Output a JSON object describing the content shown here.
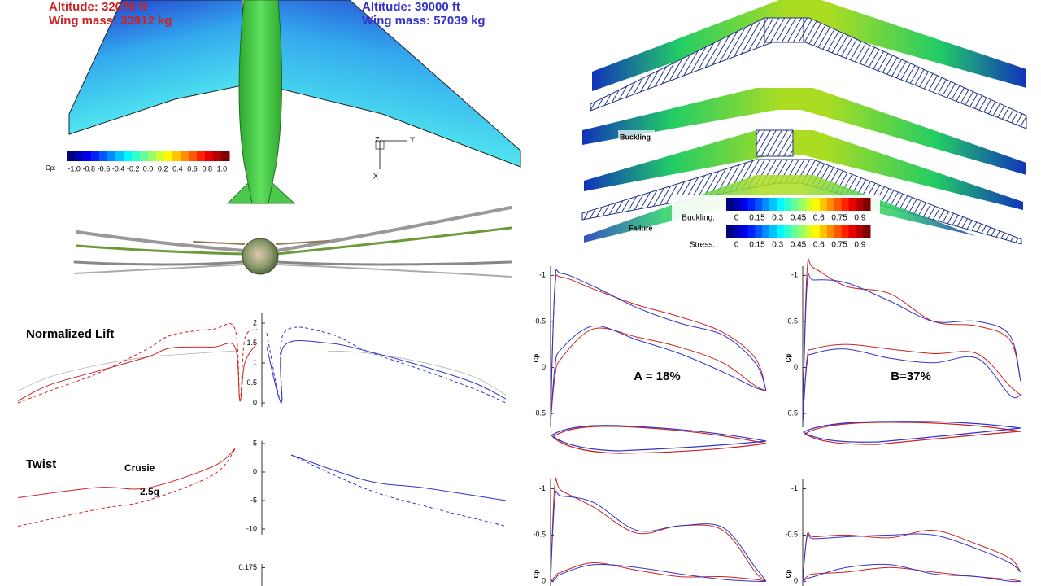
{
  "header": {
    "left_altitude": "Altitude: 32070 ft",
    "left_mass": "Wing mass: 33912 kg",
    "right_altitude": "Altitude: 39000 ft",
    "right_mass": "Wing mass: 57039 kg"
  },
  "cp_colorbar": {
    "label": "Cp:",
    "ticks": [
      "-1.0",
      "-0.8",
      "-0.6",
      "-0.4",
      "-0.2",
      "0.0",
      "0.2",
      "0.4",
      "0.6",
      "0.8",
      "1.0"
    ]
  },
  "axes_triad": {
    "z": "Z",
    "y": "Y",
    "x": "X"
  },
  "structure": {
    "buckling_label": "Buckling",
    "failure_label": "Failure",
    "buckling_bar": {
      "label": "Buckling:",
      "ticks": [
        "0",
        "0.15",
        "0.3",
        "0.45",
        "0.6",
        "0.75",
        "0.9"
      ]
    },
    "stress_bar": {
      "label": "Stress:",
      "ticks": [
        "0",
        "0.15",
        "0.3",
        "0.45",
        "0.6",
        "0.75",
        "0.9"
      ]
    }
  },
  "chart_data": [
    {
      "type": "line",
      "title": "Normalized Lift",
      "x": [
        -1,
        -0.87,
        -0.67,
        -0.47,
        -0.37,
        -0.2,
        -0.11,
        -0.09,
        -0.07,
        -0.02,
        0.02,
        0.08,
        0.09,
        0.27,
        0.43,
        0.67,
        0.87,
        1
      ],
      "xlim": [
        -1,
        1
      ],
      "ylim": [
        -0.1,
        2.25
      ],
      "yticks": [
        0,
        0.5,
        1,
        1.5,
        2
      ],
      "series": [
        {
          "color": "#aaaaaa",
          "linestyle": "solid",
          "values": [
            0.3,
            0.65,
            0.95,
            1.15,
            1.2,
            1.27,
            1.3,
            null,
            null,
            null,
            null,
            null,
            null,
            1.3,
            1.25,
            1.0,
            0.65,
            0.2
          ]
        },
        {
          "color": "#cc2222",
          "linestyle": "solid",
          "values": [
            0.05,
            0.45,
            0.8,
            1.15,
            1.38,
            1.4,
            1.4,
            0.05,
            1.0,
            1.5,
            null,
            null,
            null,
            null,
            null,
            null,
            null,
            null
          ]
        },
        {
          "color": "#cc2222",
          "linestyle": "dashed",
          "values": [
            0.0,
            0.3,
            0.75,
            1.35,
            1.7,
            1.85,
            1.85,
            0.05,
            1.6,
            1.85,
            null,
            null,
            null,
            null,
            null,
            null,
            null,
            null
          ]
        },
        {
          "color": "#3333cc",
          "linestyle": "solid",
          "values": [
            null,
            null,
            null,
            null,
            null,
            null,
            null,
            null,
            null,
            null,
            1.4,
            0.0,
            1.42,
            1.5,
            1.3,
            0.9,
            0.5,
            0.1
          ]
        },
        {
          "color": "#3333cc",
          "linestyle": "dashed",
          "values": [
            null,
            null,
            null,
            null,
            null,
            null,
            null,
            null,
            null,
            null,
            1.75,
            0.0,
            1.75,
            1.75,
            1.3,
            0.8,
            0.35,
            0.0
          ]
        }
      ]
    },
    {
      "type": "line",
      "title": "Twist",
      "annotations": [
        "Crusie",
        "2.5g"
      ],
      "x": [
        -1,
        -0.67,
        -0.47,
        -0.2,
        -0.11,
        0.12,
        0.43,
        0.67,
        1
      ],
      "xlim": [
        -1,
        1
      ],
      "ylim": [
        -11,
        5.5
      ],
      "yticks": [
        5,
        0,
        -5,
        -10
      ],
      "series": [
        {
          "color": "#cc2222",
          "linestyle": "solid",
          "values": [
            -4.5,
            -2.7,
            -2.8,
            1,
            4.1,
            null,
            null,
            null,
            null
          ]
        },
        {
          "color": "#cc2222",
          "linestyle": "dashed",
          "values": [
            -9.5,
            -6.5,
            -5,
            -0.5,
            4,
            null,
            null,
            null,
            null
          ]
        },
        {
          "color": "#3333cc",
          "linestyle": "solid",
          "values": [
            null,
            null,
            null,
            null,
            null,
            3,
            -1.5,
            -2.8,
            -5
          ]
        },
        {
          "color": "#3333cc",
          "linestyle": "dashed",
          "values": [
            null,
            null,
            null,
            null,
            null,
            3,
            -3,
            -6,
            -9.5
          ]
        }
      ]
    },
    {
      "type": "line",
      "ylim": [
        0.17,
        0.176
      ],
      "yticks": [
        0.175
      ]
    },
    {
      "type": "line",
      "title": "A = 18%",
      "ylabel": "Cp",
      "x": [
        0,
        0.02,
        0.05,
        0.2,
        0.4,
        0.6,
        0.8,
        0.95,
        1
      ],
      "xlim": [
        0,
        1
      ],
      "ylim": [
        0.65,
        -1.1
      ],
      "yticks": [
        -1,
        -0.5,
        0,
        0.5
      ],
      "series": [
        {
          "color": "#cc2222",
          "linestyle": "solid",
          "values": [
            0.45,
            -0.85,
            -0.98,
            -0.85,
            -0.68,
            -0.55,
            -0.38,
            -0.1,
            0.25
          ]
        },
        {
          "color": "#3333cc",
          "linestyle": "solid",
          "values": [
            0.6,
            -0.9,
            -1.02,
            -0.88,
            -0.65,
            -0.48,
            -0.35,
            -0.05,
            0.25
          ]
        },
        {
          "color": "#cc2222",
          "linestyle": "solid",
          "values": [
            0.6,
            0.1,
            -0.1,
            -0.42,
            -0.33,
            -0.22,
            -0.05,
            0.2,
            0.25
          ]
        },
        {
          "color": "#3333cc",
          "linestyle": "solid",
          "values": [
            0.6,
            0.0,
            -0.2,
            -0.45,
            -0.3,
            -0.15,
            0.05,
            0.22,
            0.25
          ]
        }
      ]
    },
    {
      "type": "line",
      "title": "B=37%",
      "ylabel": "Cp",
      "x": [
        0,
        0.02,
        0.05,
        0.2,
        0.4,
        0.6,
        0.8,
        0.95,
        1
      ],
      "xlim": [
        0,
        1
      ],
      "ylim": [
        0.65,
        -1.1
      ],
      "yticks": [
        -1,
        -0.5,
        0,
        0.5
      ],
      "series": [
        {
          "color": "#cc2222",
          "linestyle": "solid",
          "values": [
            0.5,
            -1.05,
            -1.08,
            -0.88,
            -0.8,
            -0.5,
            -0.45,
            -0.3,
            0.15
          ]
        },
        {
          "color": "#3333cc",
          "linestyle": "solid",
          "values": [
            0.5,
            -0.9,
            -0.95,
            -0.92,
            -0.72,
            -0.5,
            -0.5,
            -0.35,
            0.15
          ]
        },
        {
          "color": "#cc2222",
          "linestyle": "solid",
          "values": [
            0.6,
            -0.1,
            -0.2,
            -0.25,
            -0.2,
            -0.15,
            -0.15,
            0.2,
            0.3
          ]
        },
        {
          "color": "#3333cc",
          "linestyle": "solid",
          "values": [
            0.6,
            -0.05,
            -0.15,
            -0.2,
            -0.1,
            -0.05,
            -0.1,
            0.3,
            0.3
          ]
        }
      ]
    },
    {
      "type": "line",
      "ylabel": "Cp",
      "x": [
        0,
        0.02,
        0.05,
        0.2,
        0.4,
        0.6,
        0.8,
        0.95,
        1
      ],
      "xlim": [
        0,
        1
      ],
      "ylim": [
        0.05,
        -1.1
      ],
      "yticks": [
        -1,
        -0.5,
        0
      ],
      "series": [
        {
          "color": "#cc2222",
          "linestyle": "solid",
          "values": [
            0.0,
            -1.05,
            -0.98,
            -0.8,
            -0.52,
            -0.6,
            -0.55,
            -0.1,
            0.0
          ]
        },
        {
          "color": "#3333cc",
          "linestyle": "solid",
          "values": [
            0.0,
            -0.9,
            -0.92,
            -0.85,
            -0.55,
            -0.6,
            -0.58,
            -0.15,
            0.0
          ]
        },
        {
          "color": "#cc2222",
          "linestyle": "solid",
          "values": [
            0.0,
            -0.05,
            -0.1,
            -0.2,
            -0.12,
            -0.05,
            -0.05,
            -0.02,
            0.0
          ]
        },
        {
          "color": "#3333cc",
          "linestyle": "solid",
          "values": [
            0.0,
            -0.02,
            -0.08,
            -0.18,
            -0.15,
            -0.08,
            -0.02,
            0.0,
            0.0
          ]
        }
      ]
    },
    {
      "type": "line",
      "ylabel": "Cp",
      "x": [
        0,
        0.02,
        0.05,
        0.2,
        0.4,
        0.6,
        0.8,
        0.95,
        1
      ],
      "xlim": [
        0,
        1
      ],
      "ylim": [
        0.05,
        -1.1
      ],
      "yticks": [
        -1,
        -0.5,
        0
      ],
      "series": [
        {
          "color": "#cc2222",
          "linestyle": "solid",
          "values": [
            0.0,
            -0.5,
            -0.48,
            -0.5,
            -0.47,
            -0.55,
            -0.4,
            -0.25,
            -0.1
          ]
        },
        {
          "color": "#3333cc",
          "linestyle": "solid",
          "values": [
            0.0,
            -0.48,
            -0.46,
            -0.48,
            -0.5,
            -0.5,
            -0.35,
            -0.2,
            -0.1
          ]
        },
        {
          "color": "#cc2222",
          "linestyle": "solid",
          "values": [
            0.0,
            -0.05,
            -0.08,
            -0.1,
            -0.15,
            -0.1,
            -0.05,
            -0.02,
            0.0
          ]
        },
        {
          "color": "#3333cc",
          "linestyle": "solid",
          "values": [
            0.0,
            -0.03,
            -0.05,
            -0.15,
            -0.18,
            -0.08,
            -0.05,
            0.0,
            0.0
          ]
        }
      ]
    }
  ]
}
